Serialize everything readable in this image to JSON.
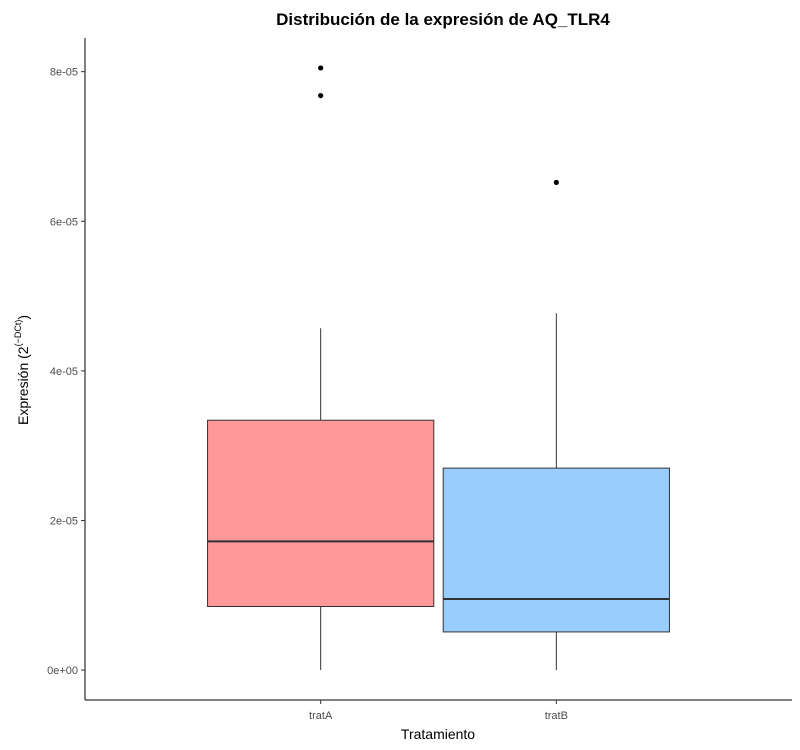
{
  "chart_data": {
    "type": "box",
    "title": "Distribución de la expresión de AQ_TLR4",
    "xlabel": "Tratamiento",
    "ylabel": {
      "main": "Expresión (2",
      "superscript": "(−DCt)",
      "close": ")"
    },
    "ylim": [
      -4e-06,
      8.45e-05
    ],
    "y_ticks": [
      0,
      2e-05,
      4e-05,
      6e-05,
      8e-05
    ],
    "y_tick_labels": [
      "0e+00",
      "2e-05",
      "4e-05",
      "6e-05",
      "8e-05"
    ],
    "categories": [
      "tratA",
      "tratB"
    ],
    "boxes": [
      {
        "name": "tratA",
        "color": "#ff9999",
        "whisker_low": 0.0,
        "q1": 8.5e-06,
        "median": 1.72e-05,
        "q3": 3.34e-05,
        "whisker_high": 4.57e-05,
        "outliers": [
          7.68e-05,
          8.05e-05
        ]
      },
      {
        "name": "tratB",
        "color": "#99ccff",
        "whisker_low": 0.0,
        "q1": 5.1e-06,
        "median": 9.5e-06,
        "q3": 2.7e-05,
        "whisker_high": 4.77e-05,
        "outliers": [
          6.52e-05
        ]
      }
    ],
    "grid": false,
    "legend": "none"
  }
}
